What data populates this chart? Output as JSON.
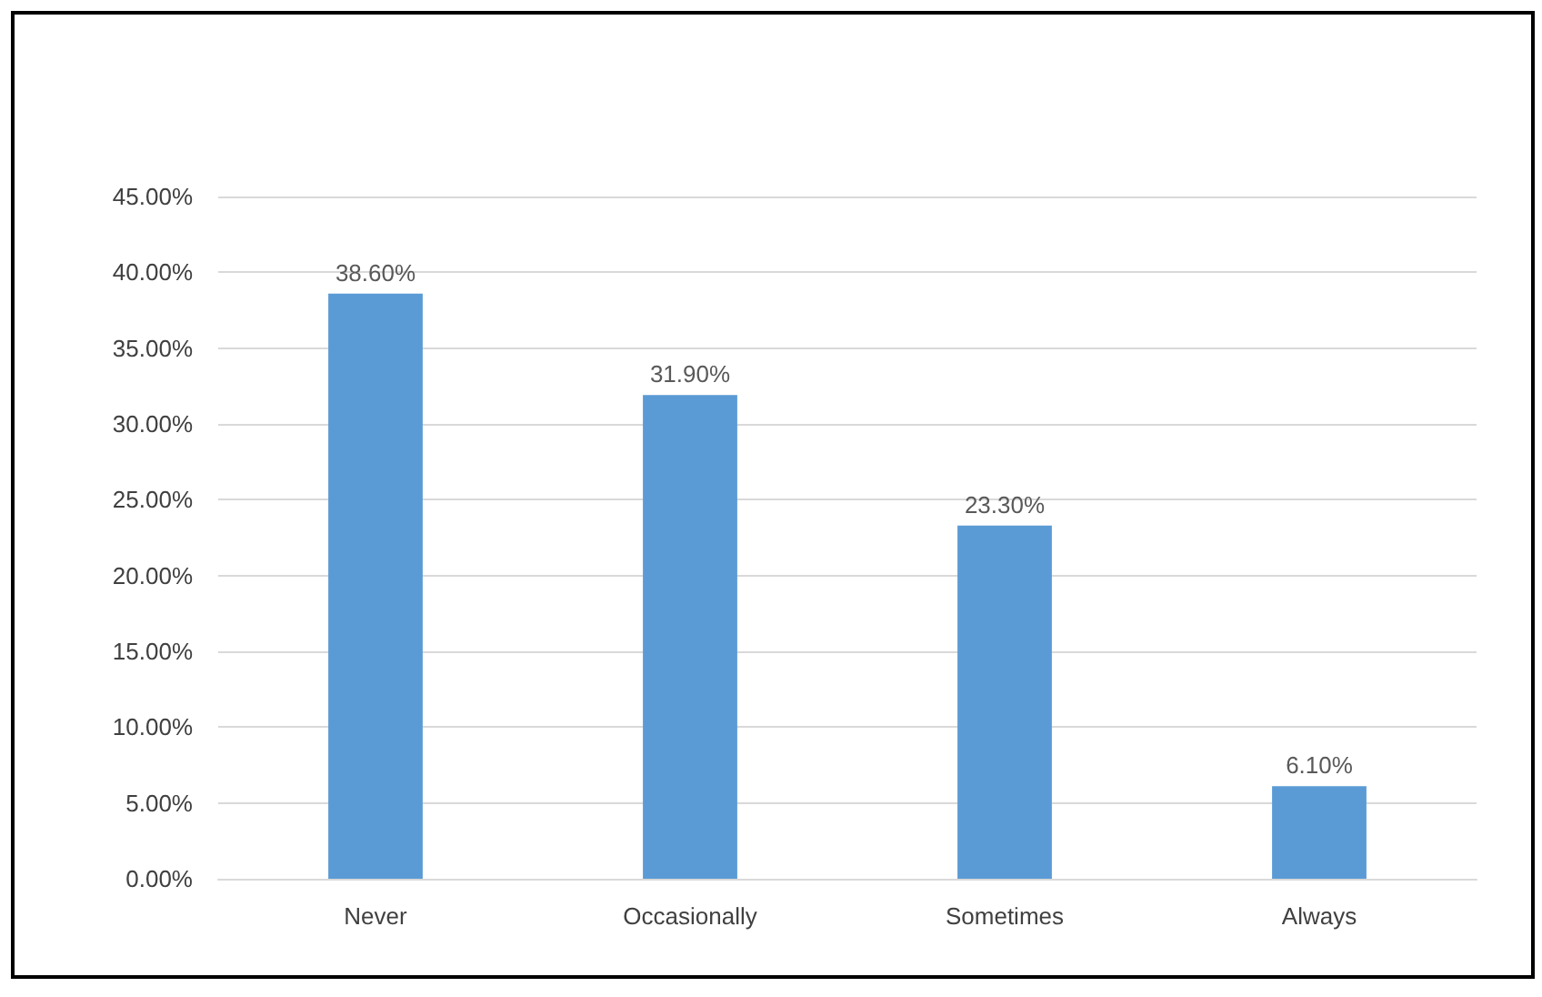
{
  "chart_data": {
    "type": "bar",
    "categories": [
      "Never",
      "Occasionally",
      "Sometimes",
      "Always"
    ],
    "values": [
      38.6,
      31.9,
      23.3,
      6.1
    ],
    "value_labels": [
      "38.60%",
      "31.90%",
      "23.30%",
      "6.10%"
    ],
    "color": "#5b9bd5",
    "ylim": [
      0,
      45
    ],
    "yticks": [
      {
        "value": 0,
        "label": "0.00%"
      },
      {
        "value": 5,
        "label": "5.00%"
      },
      {
        "value": 10,
        "label": "10.00%"
      },
      {
        "value": 15,
        "label": "15.00%"
      },
      {
        "value": 20,
        "label": "20.00%"
      },
      {
        "value": 25,
        "label": "25.00%"
      },
      {
        "value": 30,
        "label": "30.00%"
      },
      {
        "value": 35,
        "label": "35.00%"
      },
      {
        "value": 40,
        "label": "40.00%"
      },
      {
        "value": 45,
        "label": "45.00%"
      }
    ],
    "grid": "y"
  }
}
